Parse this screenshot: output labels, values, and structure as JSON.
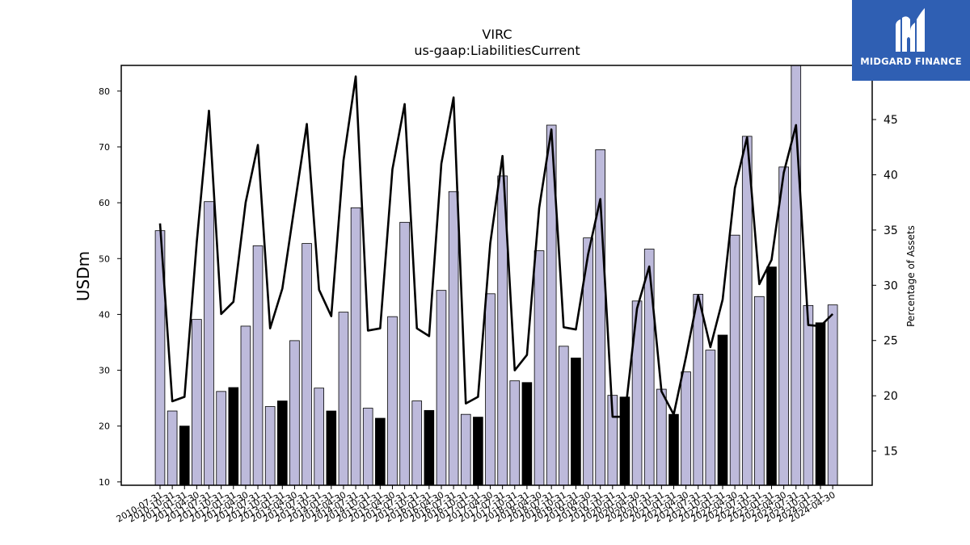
{
  "chart_data": {
    "type": "bar",
    "title": "VIRC",
    "subtitle": "us-gaap:LiabilitiesCurrent",
    "ylabel": "USDm",
    "y2label": "Percentage of Assets",
    "ylim": [
      9.4,
      84.6
    ],
    "y2lim": [
      11.9,
      49.9
    ],
    "yticks": [
      10,
      20,
      30,
      40,
      50,
      60,
      70,
      80
    ],
    "y2ticks": [
      15,
      20,
      25,
      30,
      35,
      40,
      45
    ],
    "categories": [
      "2010-07-31",
      "2010-10-31",
      "2011-01-31",
      "2011-04-30",
      "2011-07-31",
      "2011-10-31",
      "2012-01-31",
      "2012-04-30",
      "2012-07-31",
      "2012-10-31",
      "2013-01-31",
      "2013-04-30",
      "2013-07-31",
      "2013-10-31",
      "2014-01-31",
      "2014-04-30",
      "2014-07-31",
      "2014-10-31",
      "2015-01-31",
      "2015-04-30",
      "2015-07-31",
      "2015-10-31",
      "2016-01-31",
      "2016-04-30",
      "2016-07-31",
      "2016-10-31",
      "2017-01-31",
      "2017-04-30",
      "2017-07-31",
      "2017-10-31",
      "2018-01-31",
      "2018-04-30",
      "2018-07-31",
      "2018-10-31",
      "2019-01-31",
      "2019-04-30",
      "2019-07-31",
      "2019-10-31",
      "2020-01-31",
      "2020-04-30",
      "2020-07-31",
      "2020-10-31",
      "2021-01-31",
      "2021-04-30",
      "2021-07-31",
      "2021-10-31",
      "2022-01-31",
      "2022-04-30",
      "2022-07-31",
      "2022-10-31",
      "2023-01-31",
      "2023-04-30",
      "2023-07-31",
      "2023-10-31",
      "2024-01-31",
      "2024-04-30"
    ],
    "series": [
      {
        "type": "bar",
        "values": [
          55.0,
          22.7,
          20.0,
          39.1,
          60.2,
          26.2,
          26.9,
          37.9,
          52.3,
          23.5,
          24.5,
          35.3,
          52.7,
          26.8,
          22.7,
          40.4,
          59.1,
          23.2,
          21.4,
          39.6,
          56.5,
          24.5,
          22.8,
          44.3,
          62.0,
          22.1,
          21.6,
          43.7,
          64.8,
          28.1,
          27.8,
          51.4,
          73.9,
          34.3,
          32.2,
          53.7,
          69.5,
          25.5,
          25.2,
          42.4,
          51.7,
          26.6,
          22.1,
          29.7,
          43.6,
          33.6,
          36.3,
          54.2,
          71.9,
          43.2,
          48.5,
          66.4,
          84.6,
          41.6,
          38.5,
          41.7
        ],
        "highlight": [
          false,
          false,
          true,
          false,
          false,
          false,
          true,
          false,
          false,
          false,
          true,
          false,
          false,
          false,
          true,
          false,
          false,
          false,
          true,
          false,
          false,
          false,
          true,
          false,
          false,
          false,
          true,
          false,
          false,
          false,
          true,
          false,
          false,
          false,
          true,
          false,
          false,
          false,
          true,
          false,
          false,
          false,
          true,
          false,
          false,
          false,
          true,
          false,
          false,
          false,
          true,
          false,
          false,
          false,
          true,
          false
        ]
      },
      {
        "type": "line",
        "axis": "right",
        "values": [
          35.6,
          19.5,
          19.9,
          33.9,
          45.8,
          27.4,
          28.5,
          37.5,
          42.7,
          26.1,
          29.7,
          37.2,
          44.6,
          29.6,
          27.2,
          41.3,
          48.9,
          25.9,
          26.1,
          40.5,
          46.4,
          26.1,
          25.4,
          41.0,
          47.0,
          19.3,
          19.9,
          33.8,
          41.7,
          22.3,
          23.7,
          37.0,
          44.1,
          26.2,
          26.0,
          32.8,
          37.8,
          18.1,
          18.1,
          27.9,
          31.7,
          20.4,
          18.3,
          23.5,
          29.1,
          24.4,
          28.7,
          38.8,
          43.4,
          30.1,
          32.3,
          40.2,
          44.5,
          26.4,
          26.3,
          27.4
        ]
      }
    ],
    "colors": {
      "bar": "#bdbadb",
      "bar_highlight": "#000000",
      "line": "#000000"
    }
  },
  "logo": {
    "text": "MIDGARD FINANCE",
    "background": "#2f5fb3"
  }
}
